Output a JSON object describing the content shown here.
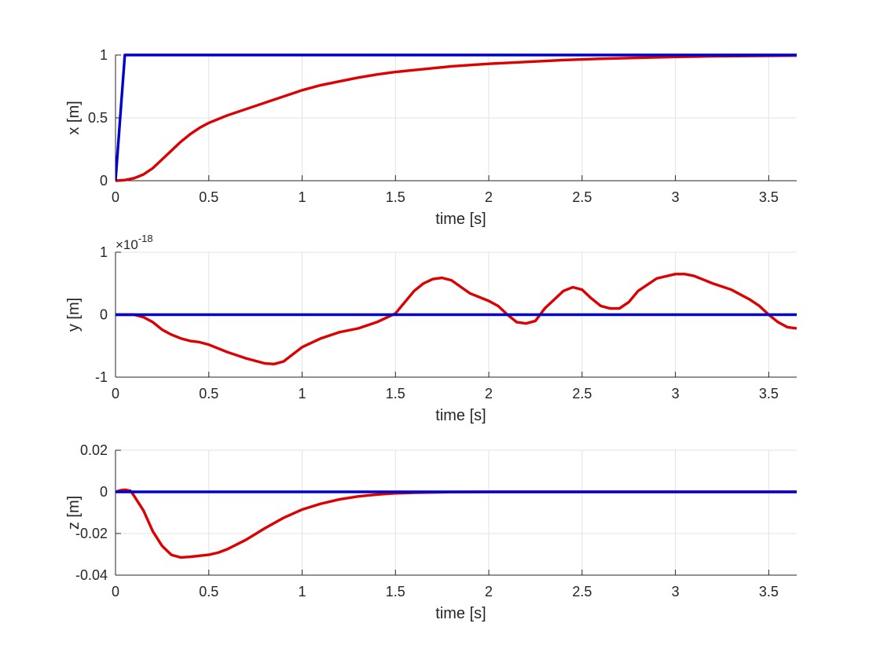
{
  "chart_data": [
    {
      "type": "line",
      "xlabel": "time [s]",
      "ylabel": "x [m]",
      "xlim": [
        0,
        3.65
      ],
      "ylim": [
        0,
        1
      ],
      "xticks": [
        0,
        0.5,
        1,
        1.5,
        2,
        2.5,
        3,
        3.5
      ],
      "xtick_labels": [
        "0",
        "0.5",
        "1",
        "1.5",
        "2",
        "2.5",
        "3",
        "3.5"
      ],
      "yticks": [
        0,
        0.5,
        1
      ],
      "ytick_labels": [
        "0",
        "0.5",
        "1"
      ],
      "exponent_label": "",
      "grid": true,
      "series": [
        {
          "color": "#0000cc",
          "x": [
            0,
            0.05,
            3.65
          ],
          "y": [
            0,
            1,
            1
          ]
        },
        {
          "color": "#dd0000",
          "x": [
            0,
            0.05,
            0.1,
            0.15,
            0.2,
            0.25,
            0.3,
            0.35,
            0.4,
            0.45,
            0.5,
            0.55,
            0.6,
            0.7,
            0.8,
            0.9,
            1.0,
            1.1,
            1.2,
            1.3,
            1.4,
            1.5,
            1.6,
            1.8,
            2.0,
            2.2,
            2.4,
            2.6,
            2.8,
            3.0,
            3.2,
            3.4,
            3.65
          ],
          "y": [
            0,
            0.005,
            0.02,
            0.05,
            0.1,
            0.17,
            0.24,
            0.31,
            0.37,
            0.42,
            0.46,
            0.49,
            0.52,
            0.57,
            0.62,
            0.67,
            0.72,
            0.76,
            0.79,
            0.82,
            0.845,
            0.865,
            0.88,
            0.91,
            0.93,
            0.945,
            0.96,
            0.97,
            0.978,
            0.985,
            0.99,
            0.993,
            0.996
          ]
        }
      ]
    },
    {
      "type": "line",
      "xlabel": "time [s]",
      "ylabel": "y [m]",
      "xlim": [
        0,
        3.65
      ],
      "ylim": [
        -1,
        1
      ],
      "xticks": [
        0,
        0.5,
        1,
        1.5,
        2,
        2.5,
        3,
        3.5
      ],
      "xtick_labels": [
        "0",
        "0.5",
        "1",
        "1.5",
        "2",
        "2.5",
        "3",
        "3.5"
      ],
      "yticks": [
        -1,
        0,
        1
      ],
      "ytick_labels": [
        "-1",
        "0",
        "1"
      ],
      "exponent_label": "×10",
      "exponent_value": "-18",
      "grid": true,
      "series": [
        {
          "color": "#0000cc",
          "x": [
            0,
            3.65
          ],
          "y": [
            0,
            0
          ]
        },
        {
          "color": "#dd0000",
          "x": [
            0,
            0.1,
            0.15,
            0.2,
            0.25,
            0.3,
            0.35,
            0.4,
            0.45,
            0.5,
            0.6,
            0.7,
            0.8,
            0.85,
            0.9,
            1.0,
            1.1,
            1.2,
            1.3,
            1.4,
            1.5,
            1.55,
            1.6,
            1.65,
            1.7,
            1.75,
            1.8,
            1.9,
            2.0,
            2.05,
            2.1,
            2.15,
            2.2,
            2.25,
            2.3,
            2.4,
            2.45,
            2.5,
            2.55,
            2.6,
            2.65,
            2.7,
            2.75,
            2.8,
            2.9,
            3.0,
            3.05,
            3.1,
            3.15,
            3.2,
            3.3,
            3.4,
            3.45,
            3.5,
            3.55,
            3.6,
            3.65
          ],
          "y": [
            0,
            0,
            -0.04,
            -0.12,
            -0.24,
            -0.32,
            -0.38,
            -0.42,
            -0.44,
            -0.48,
            -0.6,
            -0.7,
            -0.78,
            -0.79,
            -0.75,
            -0.52,
            -0.38,
            -0.28,
            -0.22,
            -0.12,
            0.02,
            0.2,
            0.38,
            0.5,
            0.57,
            0.59,
            0.55,
            0.34,
            0.22,
            0.14,
            0.0,
            -0.12,
            -0.14,
            -0.1,
            0.1,
            0.38,
            0.44,
            0.4,
            0.26,
            0.14,
            0.1,
            0.1,
            0.2,
            0.38,
            0.58,
            0.65,
            0.65,
            0.62,
            0.56,
            0.5,
            0.4,
            0.24,
            0.14,
            0.0,
            -0.12,
            -0.2,
            -0.22
          ]
        }
      ]
    },
    {
      "type": "line",
      "xlabel": "time [s]",
      "ylabel": "z [m]",
      "xlim": [
        0,
        3.65
      ],
      "ylim": [
        -0.04,
        0.02
      ],
      "xticks": [
        0,
        0.5,
        1,
        1.5,
        2,
        2.5,
        3,
        3.5
      ],
      "xtick_labels": [
        "0",
        "0.5",
        "1",
        "1.5",
        "2",
        "2.5",
        "3",
        "3.5"
      ],
      "yticks": [
        -0.04,
        -0.02,
        0,
        0.02
      ],
      "ytick_labels": [
        "-0.04",
        "-0.02",
        "0",
        "0.02"
      ],
      "exponent_label": "",
      "grid": true,
      "series": [
        {
          "color": "#0000cc",
          "x": [
            0,
            3.65
          ],
          "y": [
            0,
            0
          ]
        },
        {
          "color": "#dd0000",
          "x": [
            0,
            0.03,
            0.05,
            0.08,
            0.1,
            0.15,
            0.2,
            0.25,
            0.3,
            0.35,
            0.4,
            0.5,
            0.55,
            0.6,
            0.7,
            0.8,
            0.9,
            1.0,
            1.1,
            1.2,
            1.3,
            1.4,
            1.5,
            1.6,
            1.8,
            2.0,
            2.5,
            3.0,
            3.65
          ],
          "y": [
            0,
            0.0008,
            0.001,
            0.0005,
            -0.002,
            -0.009,
            -0.019,
            -0.026,
            -0.0303,
            -0.0315,
            -0.0312,
            -0.0302,
            -0.0292,
            -0.0275,
            -0.023,
            -0.0175,
            -0.0125,
            -0.0085,
            -0.0057,
            -0.0036,
            -0.0022,
            -0.0013,
            -0.0007,
            -0.0004,
            -0.0001,
            0,
            0,
            0,
            0
          ]
        }
      ]
    }
  ]
}
